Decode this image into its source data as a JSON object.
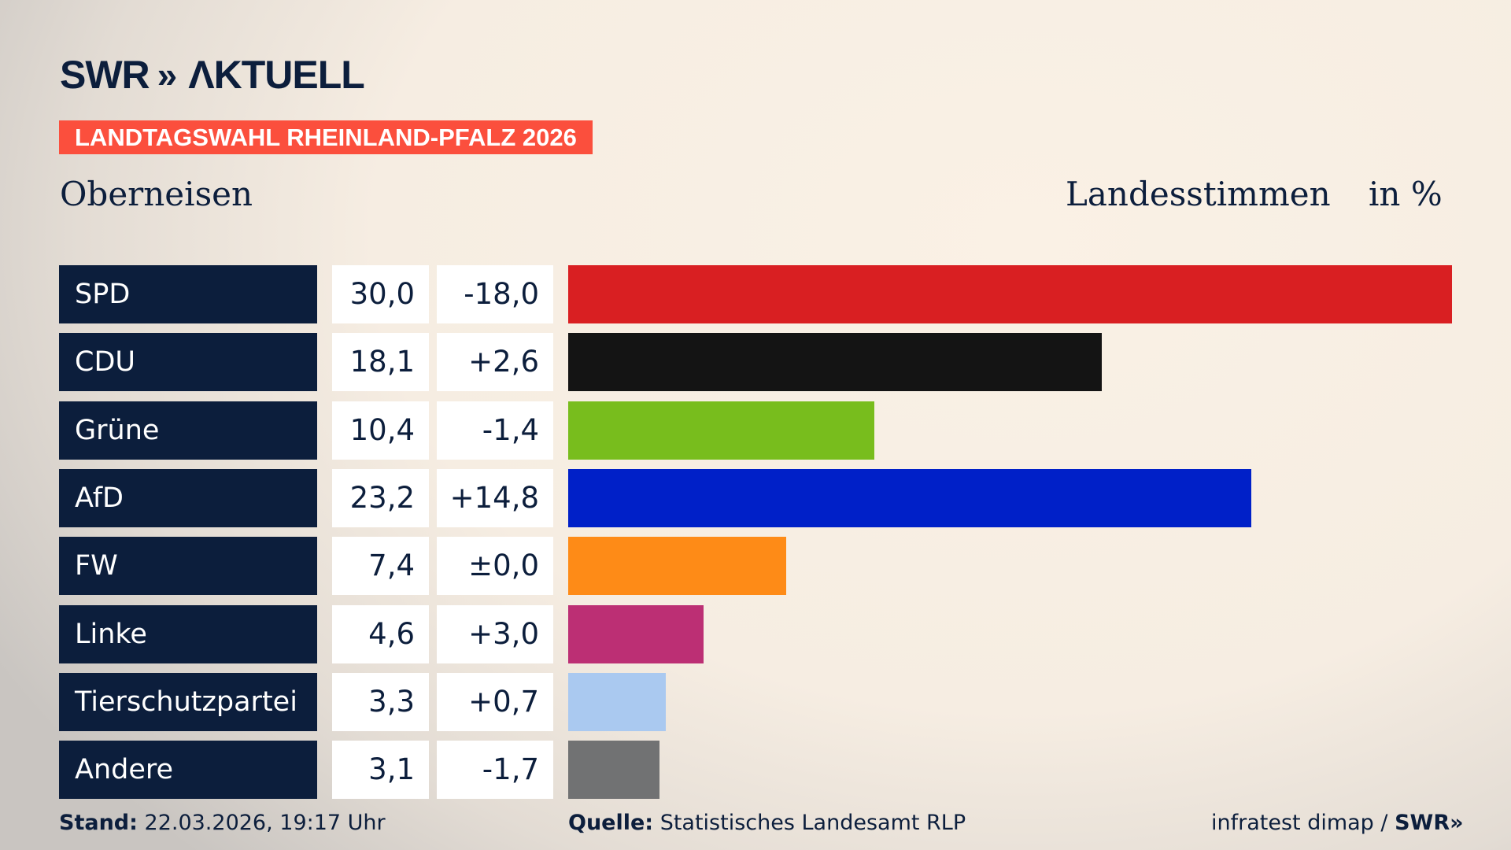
{
  "header": {
    "logo": "SWR AKTUELL",
    "logo_chevrons": "»",
    "banner": "LANDTAGSWAHL RHEINLAND-PFALZ 2026",
    "region": "Oberneisen",
    "measure": "Landesstimmen",
    "unit": "in %"
  },
  "chart_data": {
    "type": "bar",
    "orientation": "horizontal",
    "categories": [
      "SPD",
      "CDU",
      "Grüne",
      "AfD",
      "FW",
      "Linke",
      "Tierschutzpartei",
      "Andere"
    ],
    "values": [
      30.0,
      18.1,
      10.4,
      23.2,
      7.4,
      4.6,
      3.3,
      3.1
    ],
    "value_labels": [
      "30,0",
      "18,1",
      "10,4",
      "23,2",
      "7,4",
      "4,6",
      "3,3",
      "3,1"
    ],
    "change_labels": [
      "-18,0",
      "+2,6",
      "-1,4",
      "+14,8",
      "±0,0",
      "+3,0",
      "+0,7",
      "-1,7"
    ],
    "colors": [
      "#d91f22",
      "#141414",
      "#78bd1d",
      "#0020c8",
      "#fe8b17",
      "#bc2f74",
      "#aac9f0",
      "#717273"
    ],
    "xlim": [
      0,
      30.0
    ],
    "ylabel": "Landesstimmen",
    "unit": "in %"
  },
  "footer": {
    "stand_label": "Stand:",
    "stand_value": "22.03.2026, 19:17 Uhr",
    "source_label": "Quelle:",
    "source_value": "Statistisches Landesamt RLP",
    "credit": "infratest dimap / ",
    "credit_logo": "SWR»"
  }
}
